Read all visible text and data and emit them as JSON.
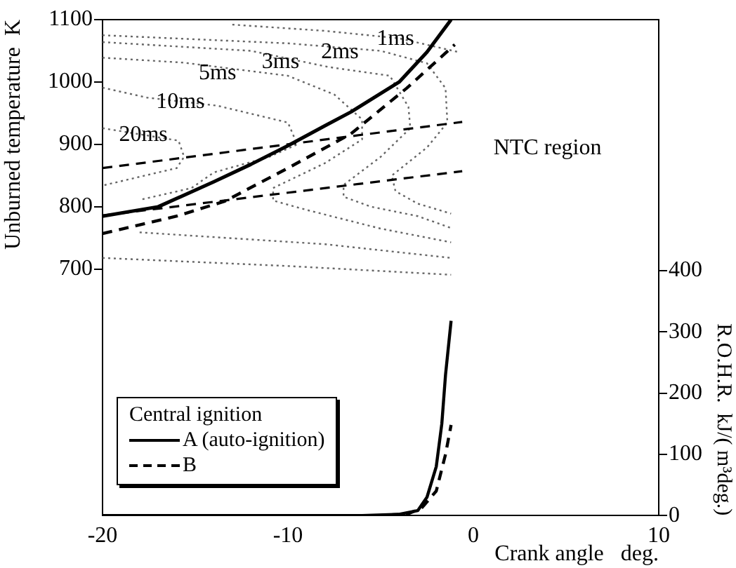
{
  "chart_data": {
    "type": "line",
    "xlabel": "Crank angle   deg.",
    "ylabel": "Unburned temperature  K",
    "y2label": "R.O.H.R.  kJ/( m³deg.)",
    "legend_title": "Central ignition",
    "legend": "bottom left",
    "grid": false,
    "marker": "none",
    "xlim": [
      -20,
      10
    ],
    "xticks": [
      -20,
      -10,
      0,
      10
    ],
    "ylim": [
      305,
      1100
    ],
    "yticks": [
      700,
      800,
      900,
      1000,
      1100
    ],
    "y2lim": [
      0,
      810
    ],
    "y2ticks": [
      0,
      100,
      200,
      300,
      400
    ],
    "annotations": [
      {
        "text": "1ms",
        "x": -4.2,
        "y": 1069
      },
      {
        "text": "2ms",
        "x": -7.2,
        "y": 1048
      },
      {
        "text": "3ms",
        "x": -10.4,
        "y": 1032
      },
      {
        "text": "5ms",
        "x": -13.8,
        "y": 1014
      },
      {
        "text": "10ms",
        "x": -15.8,
        "y": 968
      },
      {
        "text": "20ms",
        "x": -17.8,
        "y": 915
      },
      "NTC region"
    ],
    "series": [
      {
        "name": "A (auto-ignition)",
        "color": "#000000",
        "line_style": "solid",
        "x": [
          -20,
          -17,
          -14,
          -12,
          -10,
          -8,
          -6.6,
          -4,
          -2.5,
          -1.2
        ],
        "values": [
          785,
          800,
          840,
          868,
          898,
          930,
          952,
          1000,
          1048,
          1100
        ]
      },
      {
        "name": "B",
        "color": "#000000",
        "line_style": "dashed",
        "x": [
          -20,
          -16,
          -13.4,
          -10,
          -6.6,
          -3.6,
          -1
        ],
        "values": [
          757,
          785,
          809,
          862,
          917,
          990,
          1060
        ]
      },
      {
        "color": "#000000",
        "line_style": "solid",
        "axis": "y2",
        "x": [
          -20,
          -6,
          -4,
          -3,
          -2.5,
          -2,
          -1.7,
          -1.5,
          -1.2
        ],
        "values": [
          0,
          0,
          2,
          8,
          30,
          80,
          150,
          230,
          318
        ]
      },
      {
        "color": "#000000",
        "line_style": "dashed",
        "axis": "y2",
        "x": [
          -20,
          -5,
          -3.5,
          -2.8,
          -2,
          -1.5,
          -1.2
        ],
        "values": [
          0,
          0,
          3,
          12,
          40,
          100,
          148
        ]
      },
      {
        "color": "#000000",
        "line_style": "dashed",
        "x": [
          -20,
          -0.6
        ],
        "values": [
          862,
          936
        ]
      },
      {
        "color": "#000000",
        "line_style": "dashed",
        "x": [
          -20,
          -0.6
        ],
        "values": [
          786,
          857
        ]
      },
      {
        "color": "#666666",
        "line_style": "dotted",
        "x": [
          -13,
          -8,
          -4,
          -0.8
        ],
        "values": [
          1092,
          1082,
          1070,
          1048
        ]
      },
      {
        "color": "#666666",
        "line_style": "dotted",
        "x": [
          -20,
          -10,
          -5,
          -2.5,
          -1.5,
          -1.4,
          -2.5,
          -4.4,
          -4.2,
          -3,
          -1.2
        ],
        "values": [
          1075,
          1062,
          1050,
          1030,
          990,
          935,
          895,
          850,
          825,
          805,
          789
        ]
      },
      {
        "color": "#666666",
        "line_style": "dotted",
        "x": [
          -20,
          -12,
          -7.8,
          -4.5,
          -3.5,
          -3.4,
          -5,
          -7,
          -7,
          -5.5,
          -3,
          -1.2
        ],
        "values": [
          1064,
          1050,
          1024,
          1010,
          960,
          926,
          880,
          835,
          816,
          800,
          785,
          766
        ]
      },
      {
        "color": "#666666",
        "line_style": "dotted",
        "x": [
          -20,
          -15.6,
          -10,
          -7.5,
          -6,
          -6,
          -8,
          -10.8,
          -10.8,
          -9,
          -5,
          -1.2
        ],
        "values": [
          1039,
          1031,
          1010,
          980,
          940,
          908,
          870,
          830,
          810,
          795,
          765,
          743
        ]
      },
      {
        "color": "#666666",
        "line_style": "dotted",
        "x": [
          -20,
          -17.6,
          -13.8,
          -10,
          -9.5,
          -11,
          -14,
          -15.2,
          -18
        ],
        "values": [
          991,
          975,
          962,
          935,
          900,
          880,
          855,
          830,
          811
        ]
      },
      {
        "color": "#666666",
        "line_style": "dotted",
        "x": [
          -20,
          -15.9,
          -15.6,
          -16,
          -20
        ],
        "values": [
          926,
          906,
          880,
          862,
          834
        ]
      },
      {
        "color": "#666666",
        "line_style": "dotted",
        "x": [
          -18,
          -8,
          -1.2
        ],
        "values": [
          759,
          740,
          718
        ]
      },
      {
        "color": "#666666",
        "line_style": "dotted",
        "x": [
          -20,
          -10,
          -1.2
        ],
        "values": [
          718,
          705,
          691
        ]
      }
    ]
  }
}
